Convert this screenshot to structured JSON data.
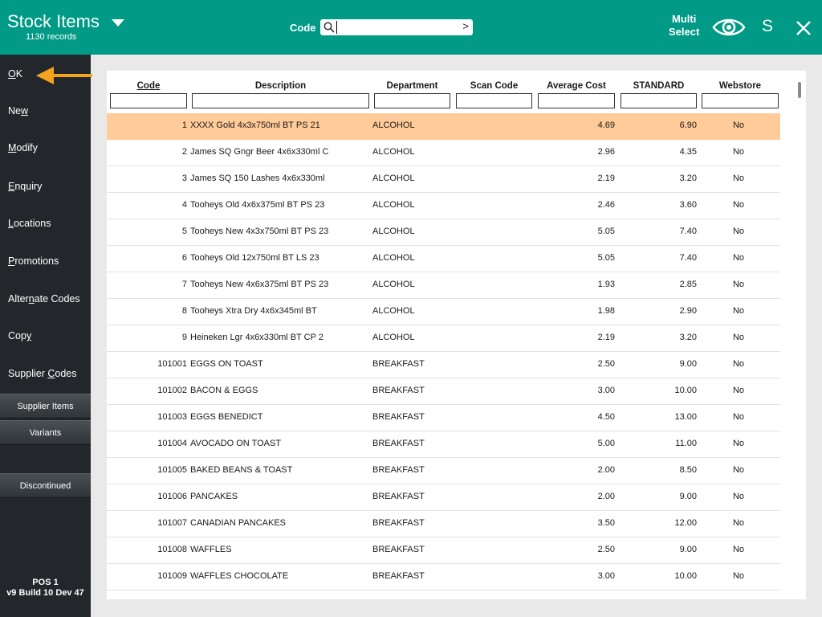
{
  "header": {
    "title": "Stock Items",
    "records": "1130 records",
    "code_label": "Code",
    "search_value": "",
    "go_label": ">",
    "multi_line1": "Multi",
    "multi_line2": "Select",
    "s_label": "S"
  },
  "sidebar": {
    "items": [
      {
        "pre": "",
        "u": "O",
        "post": "K"
      },
      {
        "pre": "Ne",
        "u": "w",
        "post": ""
      },
      {
        "pre": "",
        "u": "M",
        "post": "odify"
      },
      {
        "pre": "",
        "u": "E",
        "post": "nquiry"
      },
      {
        "pre": "",
        "u": "L",
        "post": "ocations"
      },
      {
        "pre": "",
        "u": "P",
        "post": "romotions"
      },
      {
        "pre": "Alter",
        "u": "n",
        "post": "ate Codes"
      },
      {
        "pre": "Cop",
        "u": "y",
        "post": ""
      },
      {
        "pre": "Supplier ",
        "u": "C",
        "post": "odes"
      }
    ],
    "buttons": [
      "Supplier Items",
      "Variants",
      "Discontinued"
    ],
    "version_line1": "POS 1",
    "version_line2": "v9 Build 10 Dev 47"
  },
  "table": {
    "columns": [
      "Code",
      "Description",
      "Department",
      "Scan Code",
      "Average Cost",
      "STANDARD",
      "Webstore"
    ],
    "rows": [
      {
        "code": "1",
        "desc": "XXXX Gold 4x3x750ml BT PS 21",
        "dept": "ALCOHOL",
        "scan": "",
        "avg": "4.69",
        "std": "6.90",
        "web": "No"
      },
      {
        "code": "2",
        "desc": "James SQ Gngr Beer 4x6x330ml C",
        "dept": "ALCOHOL",
        "scan": "",
        "avg": "2.96",
        "std": "4.35",
        "web": "No"
      },
      {
        "code": "3",
        "desc": "James SQ 150 Lashes 4x6x330ml",
        "dept": "ALCOHOL",
        "scan": "",
        "avg": "2.19",
        "std": "3.20",
        "web": "No"
      },
      {
        "code": "4",
        "desc": "Tooheys Old 4x6x375ml BT PS 23",
        "dept": "ALCOHOL",
        "scan": "",
        "avg": "2.46",
        "std": "3.60",
        "web": "No"
      },
      {
        "code": "5",
        "desc": "Tooheys New 4x3x750ml BT PS 23",
        "dept": "ALCOHOL",
        "scan": "",
        "avg": "5.05",
        "std": "7.40",
        "web": "No"
      },
      {
        "code": "6",
        "desc": "Tooheys Old 12x750ml BT LS 23",
        "dept": "ALCOHOL",
        "scan": "",
        "avg": "5.05",
        "std": "7.40",
        "web": "No"
      },
      {
        "code": "7",
        "desc": "Tooheys New 4x6x375ml BT PS 23",
        "dept": "ALCOHOL",
        "scan": "",
        "avg": "1.93",
        "std": "2.85",
        "web": "No"
      },
      {
        "code": "8",
        "desc": "Tooheys Xtra Dry 4x6x345ml BT",
        "dept": "ALCOHOL",
        "scan": "",
        "avg": "1.98",
        "std": "2.90",
        "web": "No"
      },
      {
        "code": "9",
        "desc": "Heineken Lgr 4x6x330ml BT CP 2",
        "dept": "ALCOHOL",
        "scan": "",
        "avg": "2.19",
        "std": "3.20",
        "web": "No"
      },
      {
        "code": "101001",
        "desc": "EGGS ON TOAST",
        "dept": "BREAKFAST",
        "scan": "",
        "avg": "2.50",
        "std": "9.00",
        "web": "No"
      },
      {
        "code": "101002",
        "desc": "BACON & EGGS",
        "dept": "BREAKFAST",
        "scan": "",
        "avg": "3.00",
        "std": "10.00",
        "web": "No"
      },
      {
        "code": "101003",
        "desc": "EGGS BENEDICT",
        "dept": "BREAKFAST",
        "scan": "",
        "avg": "4.50",
        "std": "13.00",
        "web": "No"
      },
      {
        "code": "101004",
        "desc": "AVOCADO ON TOAST",
        "dept": "BREAKFAST",
        "scan": "",
        "avg": "5.00",
        "std": "11.00",
        "web": "No"
      },
      {
        "code": "101005",
        "desc": "BAKED BEANS & TOAST",
        "dept": "BREAKFAST",
        "scan": "",
        "avg": "2.00",
        "std": "8.50",
        "web": "No"
      },
      {
        "code": "101006",
        "desc": "PANCAKES",
        "dept": "BREAKFAST",
        "scan": "",
        "avg": "2.00",
        "std": "9.00",
        "web": "No"
      },
      {
        "code": "101007",
        "desc": "CANADIAN PANCAKES",
        "dept": "BREAKFAST",
        "scan": "",
        "avg": "3.50",
        "std": "12.00",
        "web": "No"
      },
      {
        "code": "101008",
        "desc": "WAFFLES",
        "dept": "BREAKFAST",
        "scan": "",
        "avg": "2.50",
        "std": "9.00",
        "web": "No"
      },
      {
        "code": "101009",
        "desc": "WAFFLES CHOCOLATE",
        "dept": "BREAKFAST",
        "scan": "",
        "avg": "3.00",
        "std": "10.00",
        "web": "No"
      }
    ]
  },
  "colors": {
    "header_bg": "#009a86",
    "sidebar_bg": "#23272b",
    "selected_row": "#ffcb99",
    "arrow": "#f4a31e"
  }
}
